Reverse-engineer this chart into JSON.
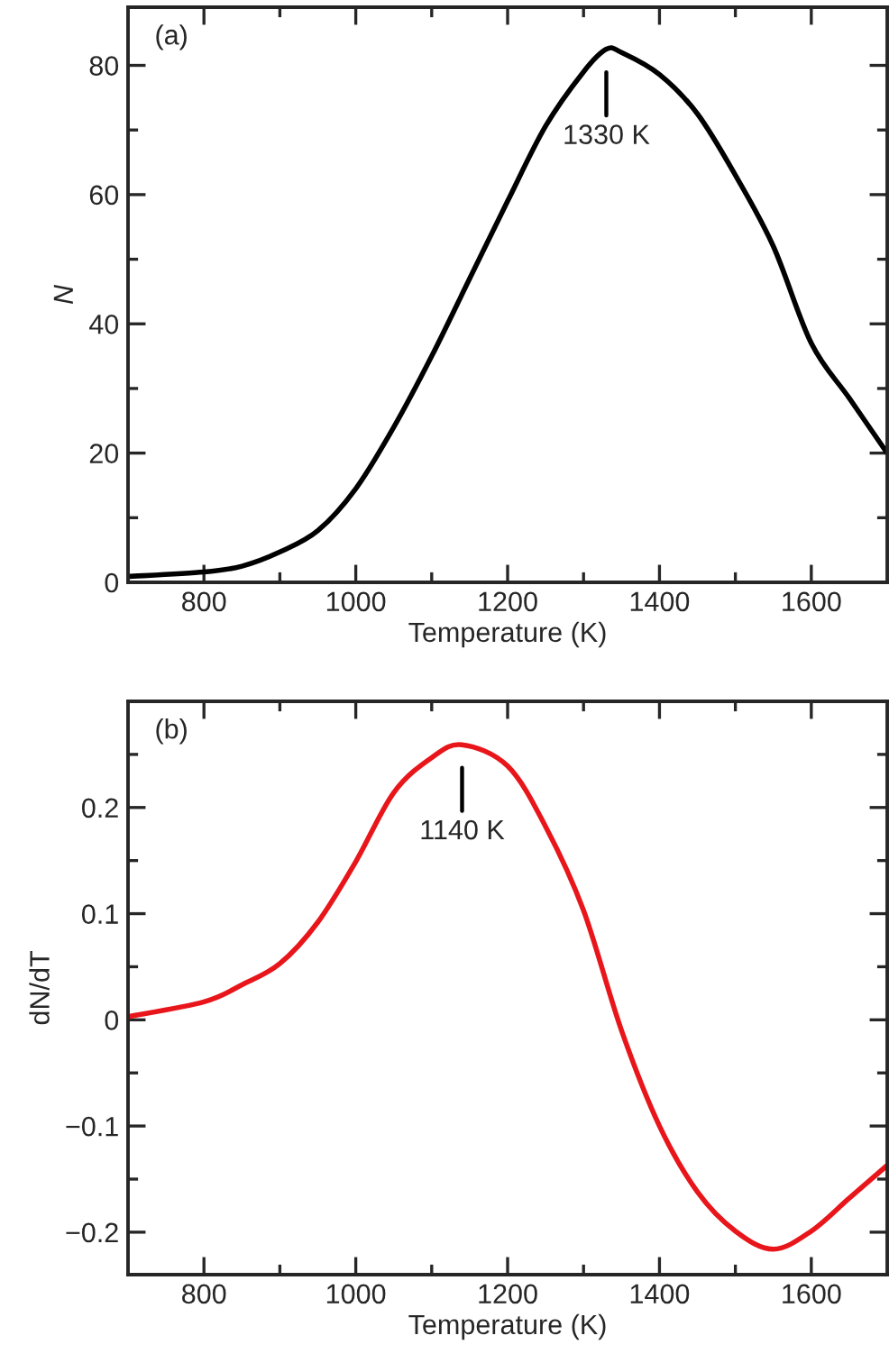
{
  "chart_data": [
    {
      "type": "line",
      "xlabel": "Temperature (K)",
      "ylabel": "N",
      "x": [
        700,
        800,
        850,
        900,
        950,
        1000,
        1050,
        1100,
        1150,
        1200,
        1250,
        1300,
        1330,
        1350,
        1400,
        1450,
        1500,
        1550,
        1600,
        1650,
        1700
      ],
      "series": [
        {
          "color": "#000000",
          "values": [
            0.9,
            1.6,
            2.5,
            4.7,
            8,
            14.5,
            24,
            35,
            47,
            59,
            70.6,
            79,
            82.5,
            82,
            78.6,
            72.5,
            63,
            52,
            37,
            28.5,
            20
          ]
        }
      ],
      "xlim": [
        700,
        1700
      ],
      "ylim": [
        0,
        89
      ],
      "xticks": [
        800,
        {
          "value": 900,
          "label": null
        },
        1000,
        {
          "value": 1100,
          "label": null
        },
        1200,
        {
          "value": 1300,
          "label": null
        },
        1400,
        {
          "value": 1500,
          "label": null
        },
        1600
      ],
      "yticks": [
        0,
        {
          "value": 10,
          "label": null
        },
        20,
        {
          "value": 30,
          "label": null
        },
        40,
        {
          "value": 50,
          "label": null
        },
        60,
        {
          "value": 70,
          "label": null
        },
        80
      ],
      "annotations": [
        "(a)",
        "1330 K"
      ],
      "grid": false,
      "legend": false,
      "line_style": "solid",
      "marker": "none"
    },
    {
      "type": "line",
      "xlabel": "Temperature (K)",
      "ylabel": "dN/dT",
      "x": [
        700,
        800,
        850,
        900,
        950,
        1000,
        1050,
        1100,
        1140,
        1200,
        1250,
        1300,
        1350,
        1400,
        1450,
        1500,
        1550,
        1600,
        1650,
        1700
      ],
      "series": [
        {
          "color": "#e8161b",
          "values": [
            0.003,
            0.017,
            0.033,
            0.053,
            0.092,
            0.149,
            0.214,
            0.247,
            0.259,
            0.239,
            0.182,
            0.103,
            -0.01,
            -0.1,
            -0.162,
            -0.199,
            -0.216,
            -0.199,
            -0.168,
            -0.137
          ]
        }
      ],
      "xlim": [
        700,
        1700
      ],
      "ylim": [
        -0.24,
        0.3
      ],
      "xticks": [
        800,
        {
          "value": 900,
          "label": null
        },
        1000,
        {
          "value": 1100,
          "label": null
        },
        1200,
        {
          "value": 1300,
          "label": null
        },
        1400,
        {
          "value": 1500,
          "label": null
        },
        1600
      ],
      "yticks": [
        {
          "value": -0.2,
          "label": "−0.2"
        },
        {
          "value": -0.15,
          "label": null
        },
        {
          "value": -0.1,
          "label": "−0.1"
        },
        {
          "value": -0.05,
          "label": null
        },
        0,
        {
          "value": 0.05,
          "label": null
        },
        0.1,
        {
          "value": 0.15,
          "label": null
        },
        0.2,
        {
          "value": 0.25,
          "label": null
        }
      ],
      "annotations": [
        "(b)",
        "1140 K"
      ],
      "grid": false,
      "legend": false,
      "line_style": "solid",
      "marker": "none"
    }
  ]
}
